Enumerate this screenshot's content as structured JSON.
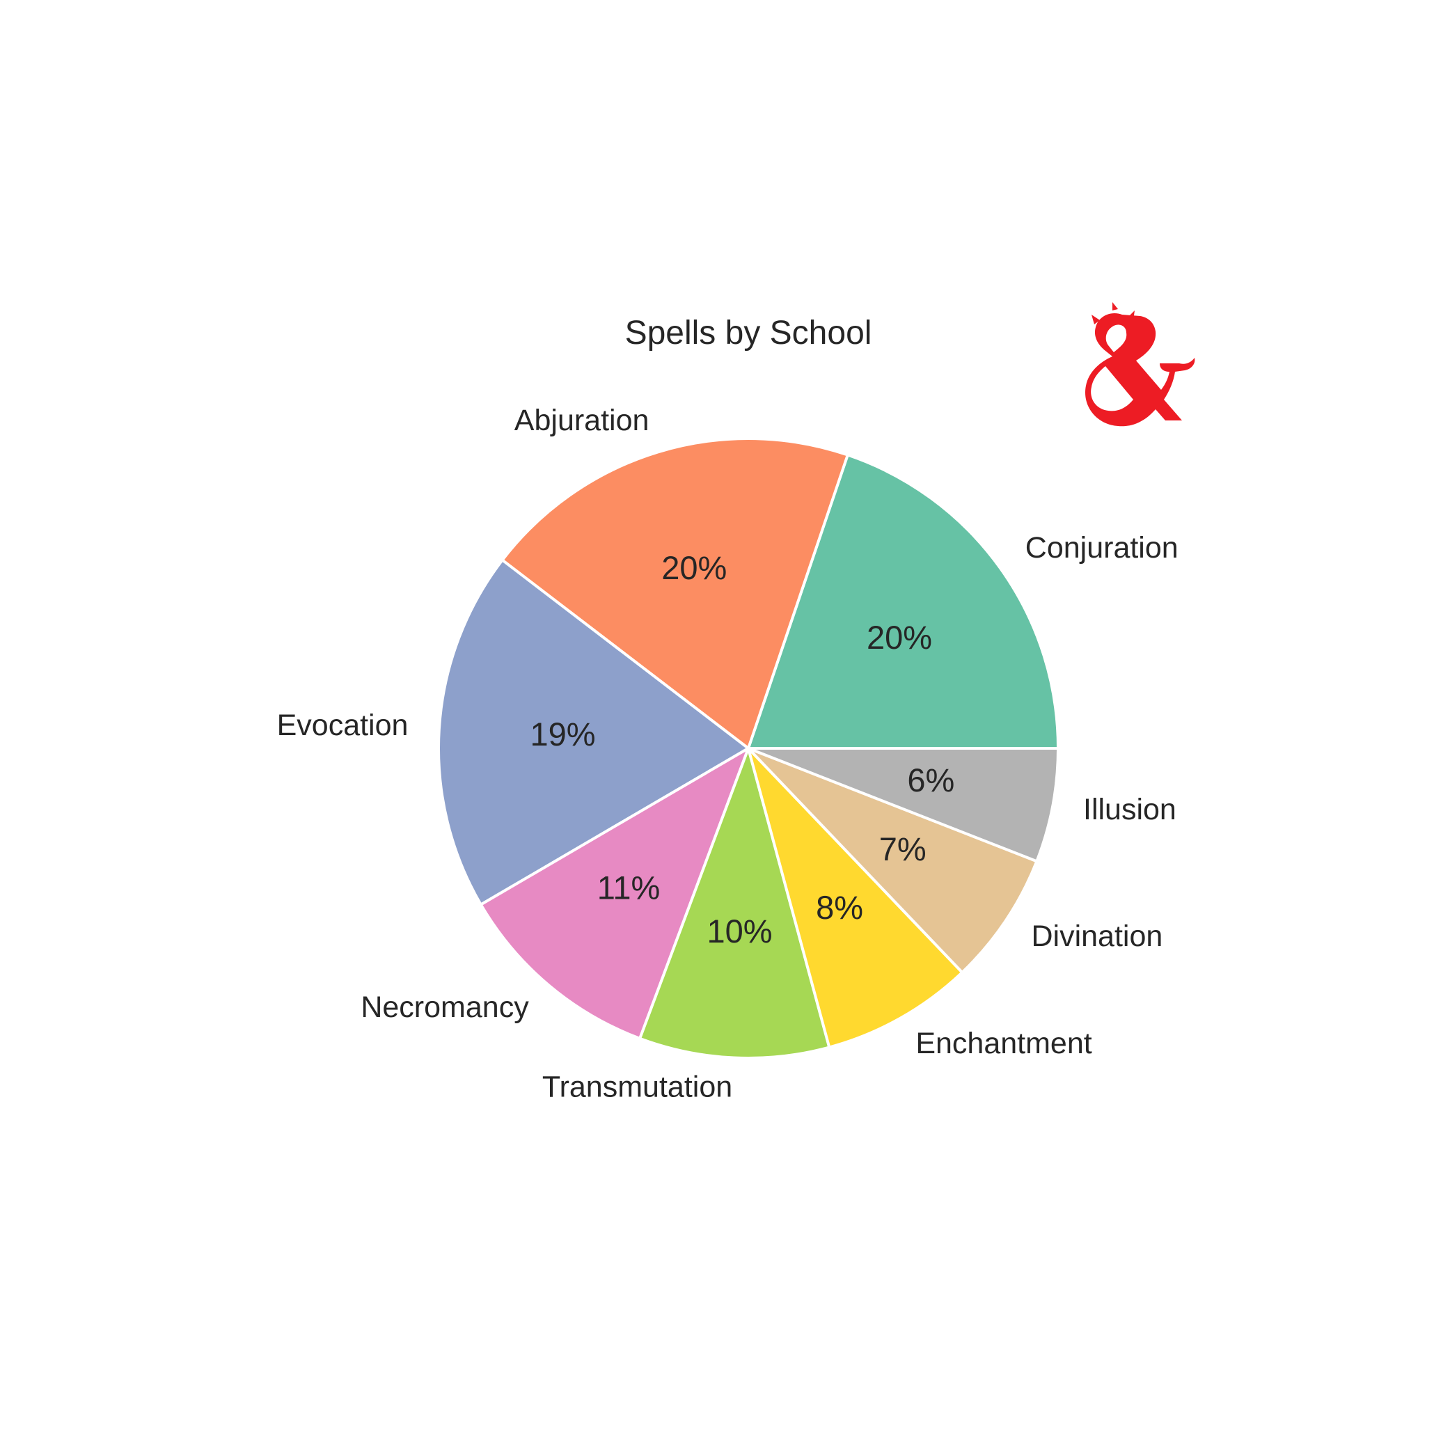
{
  "chart_data": {
    "type": "pie",
    "title": "Spells by School",
    "start_angle_deg": 0,
    "direction": "counterclockwise",
    "legend": "none",
    "categories": [
      "Conjuration",
      "Abjuration",
      "Evocation",
      "Necromancy",
      "Transmutation",
      "Enchantment",
      "Divination",
      "Illusion"
    ],
    "values": [
      20,
      20,
      19,
      11,
      10,
      8,
      7,
      6
    ],
    "value_labels": [
      "20%",
      "20%",
      "19%",
      "11%",
      "10%",
      "8%",
      "7%",
      "6%"
    ],
    "colors": [
      "#66c2a5",
      "#fc8d62",
      "#8da0cb",
      "#e78ac3",
      "#a6d854",
      "#ffd92f",
      "#e5c494",
      "#b3b3b3"
    ]
  },
  "logo": {
    "icon": "dnd-ampersand-dragon-icon",
    "color": "#ed1c24"
  }
}
